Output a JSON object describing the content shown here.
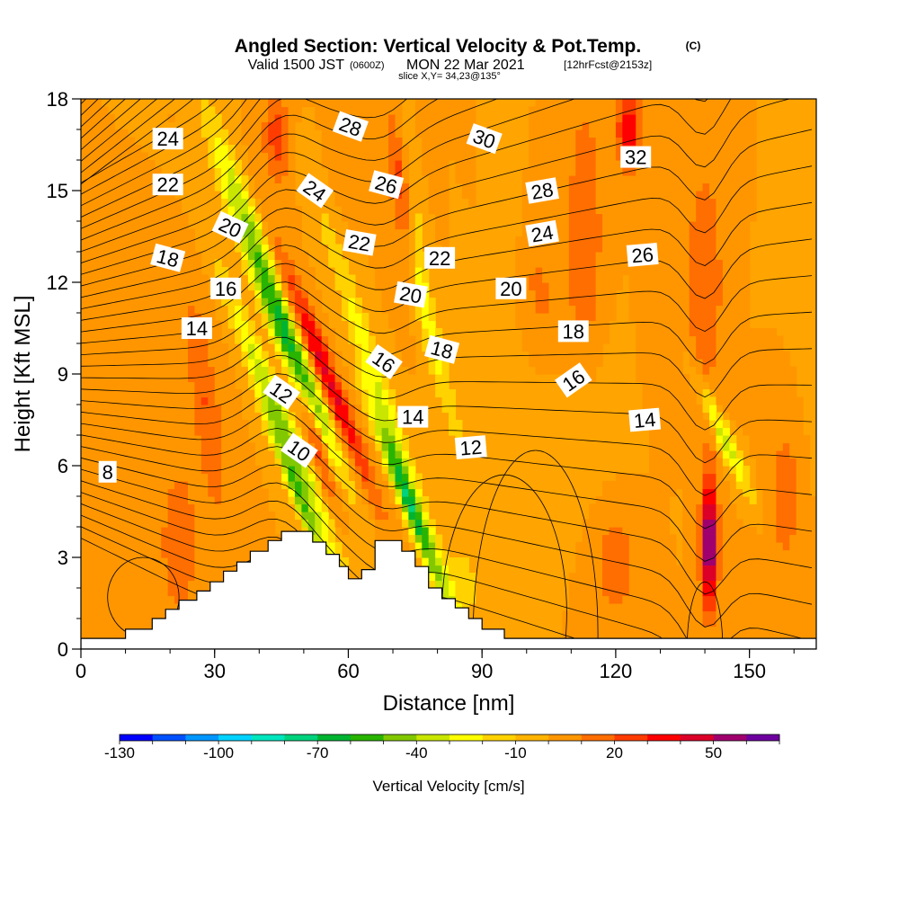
{
  "chart_data": {
    "type": "heatmap",
    "title": "Angled Section: Vertical Velocity & Pot.Temp.",
    "title_mark": "(C)",
    "subtitle": {
      "prefix": "Valid 1500 JST",
      "utc": "(0600Z)",
      "date": "MON 22 Mar 2021",
      "forecast": "[12hrFcst@2153z]"
    },
    "slice_label": "slice X,Y= 34,23@135°",
    "xlabel": "Distance [nm]",
    "ylabel": "Height [Kft MSL]",
    "xlim": [
      0,
      165
    ],
    "ylim": [
      0,
      18
    ],
    "xticks": [
      0,
      30,
      60,
      90,
      120,
      150
    ],
    "yticks": [
      0,
      3,
      6,
      9,
      12,
      15,
      18
    ],
    "colorbar": {
      "label": "Vertical Velocity [cm/s]",
      "tick_labels": [
        "-130",
        "-100",
        "-70",
        "-40",
        "-10",
        "20",
        "50"
      ],
      "tick_values": [
        -130,
        -100,
        -70,
        -40,
        -10,
        20,
        50
      ],
      "min": -130,
      "max": 70,
      "colors": [
        "#0000ff",
        "#0050ff",
        "#0096ff",
        "#00d2ff",
        "#00e6be",
        "#00d27d",
        "#00b432",
        "#28b400",
        "#82c800",
        "#c8e600",
        "#ffff00",
        "#ffd200",
        "#ffb400",
        "#ff9600",
        "#ff6e00",
        "#ff3c00",
        "#ff0000",
        "#dc0028",
        "#a0006e",
        "#6e00a0"
      ]
    },
    "terrain": [
      [
        0,
        0.35
      ],
      [
        10,
        0.35
      ],
      [
        10,
        0.65
      ],
      [
        16,
        0.65
      ],
      [
        16,
        1.0
      ],
      [
        19,
        1.0
      ],
      [
        19,
        1.3
      ],
      [
        22,
        1.3
      ],
      [
        22,
        1.6
      ],
      [
        26,
        1.6
      ],
      [
        26,
        1.9
      ],
      [
        29,
        1.9
      ],
      [
        29,
        2.2
      ],
      [
        32,
        2.2
      ],
      [
        32,
        2.55
      ],
      [
        35,
        2.55
      ],
      [
        35,
        2.85
      ],
      [
        38,
        2.85
      ],
      [
        38,
        3.2
      ],
      [
        42,
        3.2
      ],
      [
        42,
        3.55
      ],
      [
        45,
        3.55
      ],
      [
        45,
        3.85
      ],
      [
        52,
        3.85
      ],
      [
        52,
        3.5
      ],
      [
        55,
        3.5
      ],
      [
        55,
        3.1
      ],
      [
        58,
        3.1
      ],
      [
        58,
        2.7
      ],
      [
        60,
        2.7
      ],
      [
        60,
        2.3
      ],
      [
        63,
        2.3
      ],
      [
        63,
        2.6
      ],
      [
        66,
        2.6
      ],
      [
        66,
        3.55
      ],
      [
        72,
        3.55
      ],
      [
        72,
        3.2
      ],
      [
        75,
        3.2
      ],
      [
        75,
        2.7
      ],
      [
        78,
        2.7
      ],
      [
        78,
        2.0
      ],
      [
        81,
        2.0
      ],
      [
        81,
        1.65
      ],
      [
        84,
        1.65
      ],
      [
        84,
        1.35
      ],
      [
        87,
        1.35
      ],
      [
        87,
        1.0
      ],
      [
        90,
        1.0
      ],
      [
        90,
        0.65
      ],
      [
        95,
        0.65
      ],
      [
        95,
        0.35
      ],
      [
        165,
        0.35
      ]
    ],
    "contour_levels": [
      8,
      10,
      12,
      14,
      16,
      18,
      20,
      22,
      24,
      26,
      28,
      30,
      32
    ],
    "contour_labels": [
      {
        "text": "24",
        "x": 19.5,
        "y": 16.7,
        "rot": 0
      },
      {
        "text": "22",
        "x": 19.5,
        "y": 15.2,
        "rot": 0
      },
      {
        "text": "20",
        "x": 33.5,
        "y": 13.8,
        "rot": 25
      },
      {
        "text": "18",
        "x": 19.5,
        "y": 12.8,
        "rot": 15
      },
      {
        "text": "16",
        "x": 32.5,
        "y": 11.8,
        "rot": 0
      },
      {
        "text": "14",
        "x": 26.0,
        "y": 10.5,
        "rot": 0
      },
      {
        "text": "12",
        "x": 45.0,
        "y": 8.4,
        "rot": 35
      },
      {
        "text": "10",
        "x": 49.0,
        "y": 6.5,
        "rot": 35
      },
      {
        "text": "8",
        "x": 6.0,
        "y": 5.8,
        "rot": 0
      },
      {
        "text": "28",
        "x": 60.5,
        "y": 17.1,
        "rot": 20
      },
      {
        "text": "24",
        "x": 52.5,
        "y": 15.0,
        "rot": 35
      },
      {
        "text": "26",
        "x": 68.5,
        "y": 15.2,
        "rot": 15
      },
      {
        "text": "22",
        "x": 62.5,
        "y": 13.3,
        "rot": 10
      },
      {
        "text": "22",
        "x": 80.5,
        "y": 12.8,
        "rot": 0
      },
      {
        "text": "20",
        "x": 74.0,
        "y": 11.6,
        "rot": 10
      },
      {
        "text": "20",
        "x": 96.5,
        "y": 11.8,
        "rot": 0
      },
      {
        "text": "16",
        "x": 68.0,
        "y": 9.4,
        "rot": 35
      },
      {
        "text": "18",
        "x": 81.0,
        "y": 9.8,
        "rot": 15
      },
      {
        "text": "18",
        "x": 110.5,
        "y": 10.4,
        "rot": 0
      },
      {
        "text": "14",
        "x": 74.5,
        "y": 7.6,
        "rot": 0
      },
      {
        "text": "12",
        "x": 87.5,
        "y": 6.6,
        "rot": -5
      },
      {
        "text": "16",
        "x": 110.5,
        "y": 8.8,
        "rot": -35
      },
      {
        "text": "14",
        "x": 126.5,
        "y": 7.5,
        "rot": -5
      },
      {
        "text": "30",
        "x": 90.5,
        "y": 16.7,
        "rot": 20
      },
      {
        "text": "28",
        "x": 103.5,
        "y": 15.0,
        "rot": -10
      },
      {
        "text": "24",
        "x": 103.5,
        "y": 13.6,
        "rot": -10
      },
      {
        "text": "32",
        "x": 124.5,
        "y": 16.1,
        "rot": 0
      },
      {
        "text": "26",
        "x": 126.0,
        "y": 12.9,
        "rot": -5
      }
    ]
  }
}
